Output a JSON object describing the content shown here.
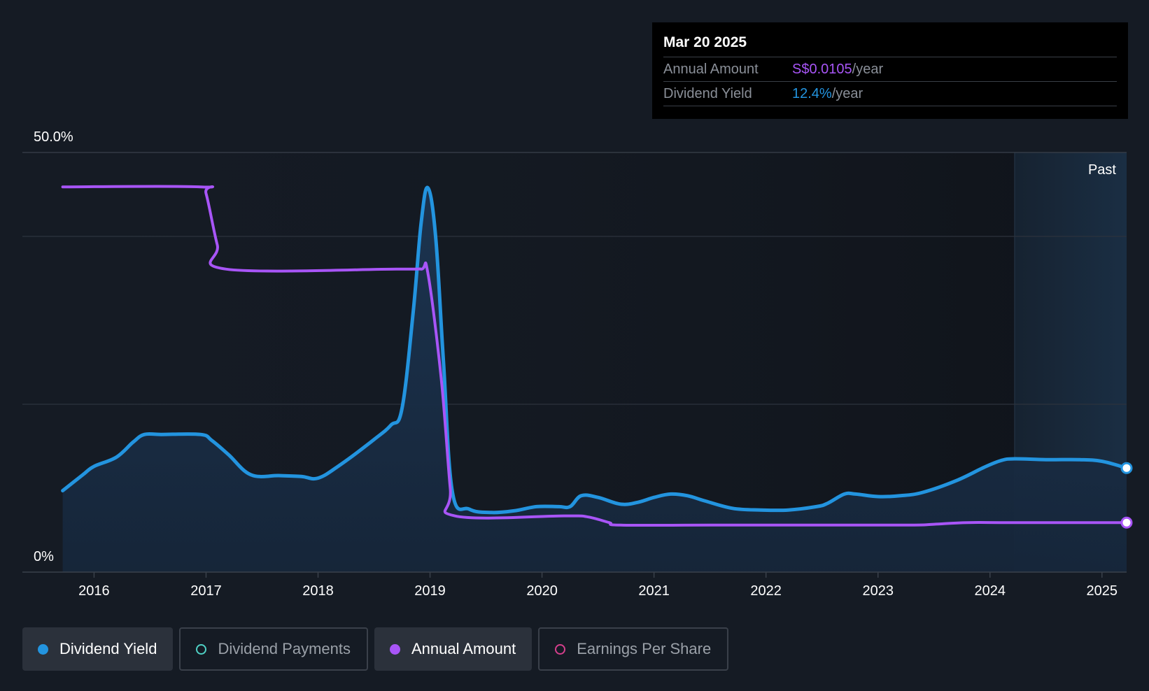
{
  "tooltip": {
    "date": "Mar 20 2025",
    "annual_label": "Annual Amount",
    "annual_value": "S$0.0105",
    "annual_unit": "/year",
    "yield_label": "Dividend Yield",
    "yield_value": "12.4%",
    "yield_unit": "/year"
  },
  "legend": [
    {
      "label": "Dividend Yield",
      "color": "#2394df",
      "active": true,
      "filled": true
    },
    {
      "label": "Dividend Payments",
      "color": "#4fd1c5",
      "active": false,
      "filled": false
    },
    {
      "label": "Annual Amount",
      "color": "#a855f7",
      "active": true,
      "filled": true
    },
    {
      "label": "Earnings Per Share",
      "color": "#d53f8c",
      "active": false,
      "filled": false
    }
  ],
  "colors": {
    "yield": "#2394df",
    "amount": "#a855f7",
    "grid": "#2c333d",
    "text": "#ffffff"
  },
  "chart_data": {
    "type": "line",
    "past_label": "Past",
    "past_region_start": 2024.22,
    "y_axis": {
      "top_label": "50.0%",
      "bottom_label": "0%",
      "ylim": [
        0,
        50
      ],
      "gridlines": [
        0,
        20,
        40,
        50
      ]
    },
    "x_axis": {
      "ticks": [
        "2016",
        "2017",
        "2018",
        "2019",
        "2020",
        "2021",
        "2022",
        "2023",
        "2024",
        "2025"
      ],
      "tick_values": [
        2016,
        2017,
        2018,
        2019,
        2020,
        2021,
        2022,
        2023,
        2024,
        2025
      ],
      "xlim": [
        2015.36,
        2025.22
      ]
    },
    "series": [
      {
        "name": "Dividend Yield",
        "unit": "%",
        "points": [
          [
            2015.72,
            9.7
          ],
          [
            2015.9,
            11.6
          ],
          [
            2016.0,
            12.6
          ],
          [
            2016.2,
            13.7
          ],
          [
            2016.35,
            15.5
          ],
          [
            2016.45,
            16.4
          ],
          [
            2016.6,
            16.4
          ],
          [
            2016.95,
            16.4
          ],
          [
            2017.05,
            15.7
          ],
          [
            2017.2,
            14.0
          ],
          [
            2017.4,
            11.6
          ],
          [
            2017.65,
            11.5
          ],
          [
            2017.85,
            11.4
          ],
          [
            2018.0,
            11.2
          ],
          [
            2018.2,
            12.8
          ],
          [
            2018.5,
            15.8
          ],
          [
            2018.65,
            17.5
          ],
          [
            2018.75,
            19.5
          ],
          [
            2018.85,
            31.0
          ],
          [
            2018.92,
            41.5
          ],
          [
            2018.98,
            45.8
          ],
          [
            2019.05,
            40.0
          ],
          [
            2019.12,
            25.0
          ],
          [
            2019.2,
            9.5
          ],
          [
            2019.35,
            7.5
          ],
          [
            2019.55,
            7.1
          ],
          [
            2019.75,
            7.3
          ],
          [
            2019.95,
            7.8
          ],
          [
            2020.15,
            7.8
          ],
          [
            2020.25,
            7.8
          ],
          [
            2020.35,
            9.1
          ],
          [
            2020.5,
            8.9
          ],
          [
            2020.7,
            8.1
          ],
          [
            2020.85,
            8.3
          ],
          [
            2021.0,
            8.9
          ],
          [
            2021.15,
            9.3
          ],
          [
            2021.3,
            9.1
          ],
          [
            2021.45,
            8.5
          ],
          [
            2021.7,
            7.6
          ],
          [
            2021.95,
            7.4
          ],
          [
            2022.2,
            7.4
          ],
          [
            2022.45,
            7.8
          ],
          [
            2022.55,
            8.2
          ],
          [
            2022.7,
            9.3
          ],
          [
            2022.8,
            9.3
          ],
          [
            2023.0,
            9.0
          ],
          [
            2023.2,
            9.1
          ],
          [
            2023.4,
            9.5
          ],
          [
            2023.7,
            10.9
          ],
          [
            2023.95,
            12.5
          ],
          [
            2024.1,
            13.3
          ],
          [
            2024.22,
            13.5
          ],
          [
            2024.5,
            13.4
          ],
          [
            2024.8,
            13.4
          ],
          [
            2025.0,
            13.2
          ],
          [
            2025.22,
            12.4
          ]
        ]
      },
      {
        "name": "Annual Amount",
        "unit": "normalized",
        "points": [
          [
            2015.72,
            45.9
          ],
          [
            2016.95,
            45.9
          ],
          [
            2017.0,
            45.1
          ],
          [
            2017.1,
            39.0
          ],
          [
            2017.18,
            36.1
          ],
          [
            2018.7,
            36.1
          ],
          [
            2018.92,
            36.1
          ],
          [
            2018.98,
            35.7
          ],
          [
            2019.1,
            23.0
          ],
          [
            2019.18,
            10.0
          ],
          [
            2019.22,
            6.7
          ],
          [
            2020.2,
            6.7
          ],
          [
            2020.4,
            6.6
          ],
          [
            2020.6,
            5.9
          ],
          [
            2020.7,
            5.6
          ],
          [
            2021.5,
            5.6
          ],
          [
            2022.5,
            5.6
          ],
          [
            2023.3,
            5.6
          ],
          [
            2023.5,
            5.7
          ],
          [
            2023.8,
            5.9
          ],
          [
            2024.2,
            5.9
          ],
          [
            2025.22,
            5.9
          ]
        ]
      }
    ]
  }
}
